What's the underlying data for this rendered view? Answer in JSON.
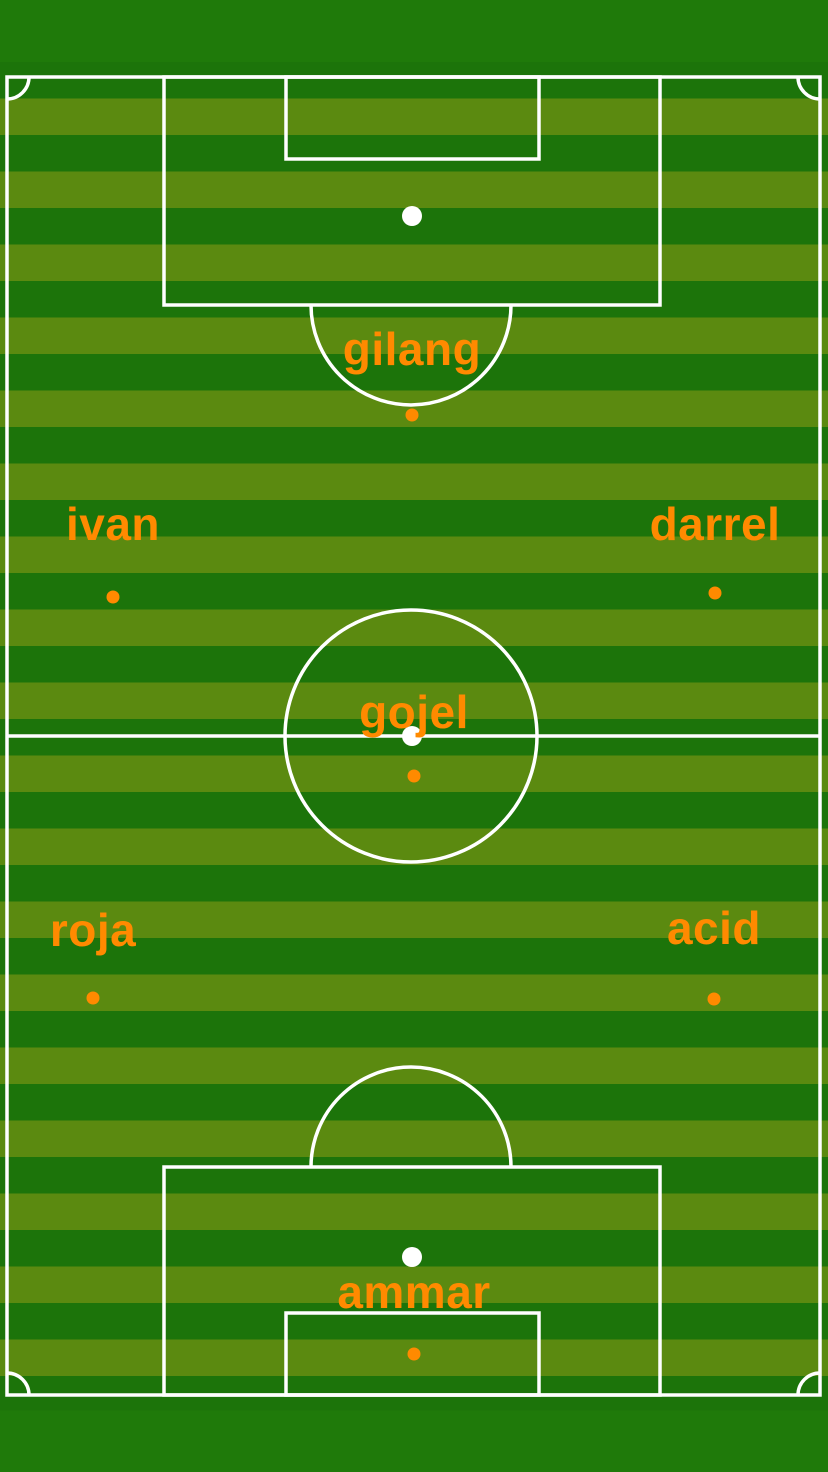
{
  "pitch": {
    "colors": {
      "stripe_dark": "#1c740a",
      "stripe_light": "#5b8a10",
      "border": "#1f7a0a",
      "lines": "#ffffff",
      "player": "#ff8a00"
    }
  },
  "players": [
    {
      "name": "gilang"
    },
    {
      "name": "ivan"
    },
    {
      "name": "darrel"
    },
    {
      "name": "gojel"
    },
    {
      "name": "roja"
    },
    {
      "name": "acid"
    },
    {
      "name": "ammar"
    }
  ]
}
